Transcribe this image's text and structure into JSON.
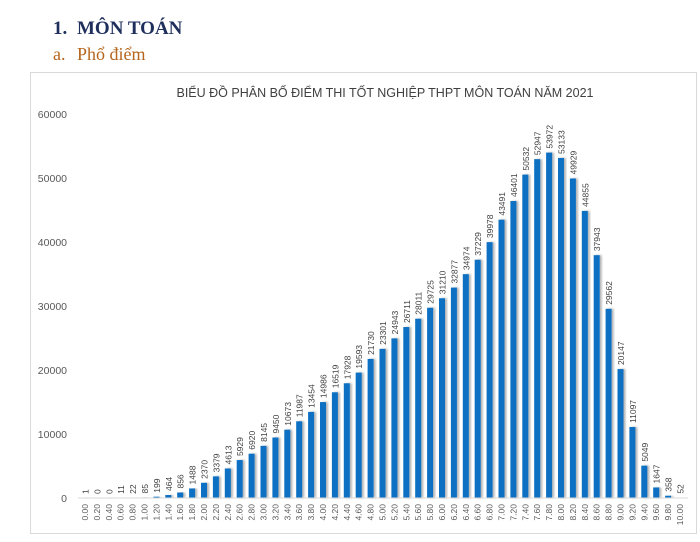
{
  "document": {
    "heading": {
      "number": "1.",
      "text": "MÔN TOÁN"
    },
    "subheading": {
      "number": "a.",
      "text": "Phổ điểm"
    }
  },
  "chart_data": {
    "type": "bar",
    "title": "BIỂU ĐỒ PHÂN BỐ ĐIỂM THI TỐT NGHIỆP THPT MÔN TOÁN NĂM 2021",
    "xlabel": "",
    "ylabel": "",
    "ylim": [
      0,
      60000
    ],
    "yticks": [
      "0",
      "10000",
      "20000",
      "30000",
      "40000",
      "50000",
      "60000"
    ],
    "grid": false,
    "bar_color": "#0a6fc2",
    "categories": [
      "0.00",
      "0.20",
      "0.40",
      "0.60",
      "0.80",
      "1.00",
      "1.20",
      "1.40",
      "1.60",
      "1.80",
      "2.00",
      "2.20",
      "2.40",
      "2.60",
      "2.80",
      "3.00",
      "3.20",
      "3.40",
      "3.60",
      "3.80",
      "4.00",
      "4.20",
      "4.40",
      "4.60",
      "4.80",
      "5.00",
      "5.20",
      "5.40",
      "5.60",
      "5.80",
      "6.00",
      "6.20",
      "6.40",
      "6.60",
      "6.80",
      "7.00",
      "7.20",
      "7.40",
      "7.60",
      "7.80",
      "8.00",
      "8.20",
      "8.40",
      "8.60",
      "8.80",
      "9.00",
      "9.20",
      "9.40",
      "9.60",
      "9.80",
      "10.00"
    ],
    "values": [
      1,
      0,
      0,
      11,
      22,
      85,
      199,
      464,
      856,
      1488,
      2370,
      3379,
      4613,
      5929,
      6920,
      8145,
      9450,
      10673,
      11987,
      13454,
      14986,
      16519,
      17928,
      19593,
      21730,
      23301,
      24943,
      26711,
      28011,
      29725,
      31210,
      32877,
      34974,
      37229,
      39978,
      43491,
      46401,
      50532,
      52947,
      53972,
      53133,
      49929,
      44855,
      37943,
      29562,
      20147,
      11097,
      5049,
      1647,
      358,
      52
    ]
  }
}
